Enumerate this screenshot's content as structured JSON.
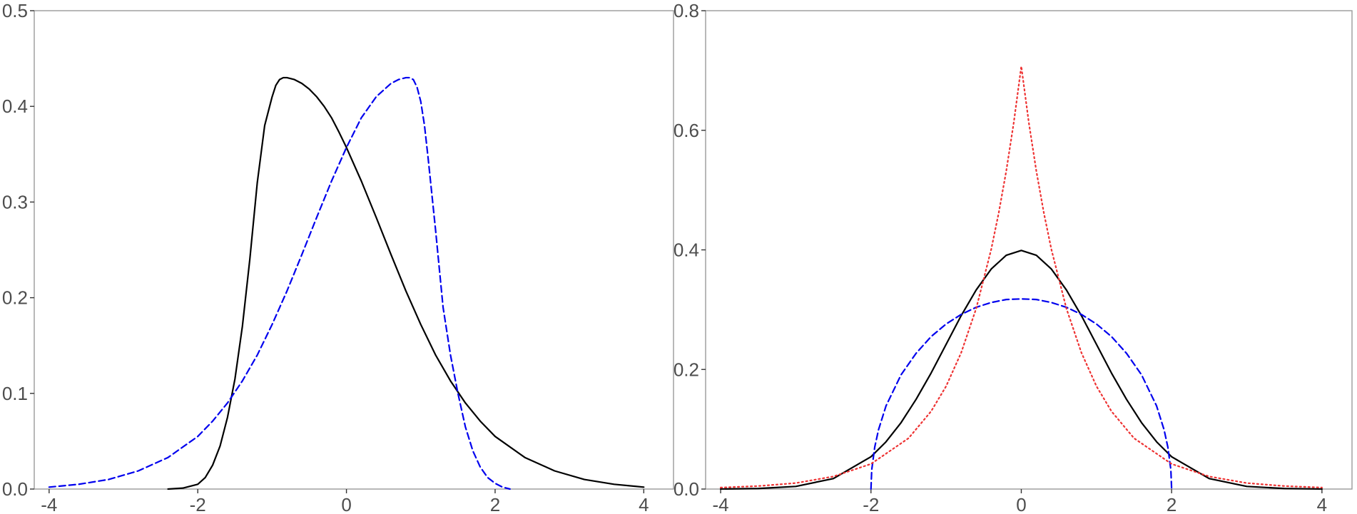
{
  "chart_data": [
    {
      "type": "line",
      "title": "",
      "xlabel": "",
      "ylabel": "",
      "xlim": [
        -4.2,
        4.4
      ],
      "ylim": [
        0,
        0.5
      ],
      "xticks": [
        -4,
        -2,
        0,
        2,
        4
      ],
      "yticks": [
        0.0,
        0.1,
        0.2,
        0.3,
        0.4,
        0.5
      ],
      "xtick_labels": [
        "-4",
        "-2",
        "0",
        "2",
        "4"
      ],
      "ytick_labels": [
        "0.0",
        "0.1",
        "0.2",
        "0.3",
        "0.4",
        "0.5"
      ],
      "grid": false,
      "series": [
        {
          "color": "#000000",
          "dash": "solid",
          "x": [
            -2.4,
            -2.2,
            -2.0,
            -1.9,
            -1.8,
            -1.7,
            -1.6,
            -1.5,
            -1.4,
            -1.3,
            -1.2,
            -1.1,
            -1.0,
            -0.95,
            -0.9,
            -0.85,
            -0.8,
            -0.7,
            -0.6,
            -0.5,
            -0.4,
            -0.3,
            -0.2,
            -0.1,
            0.0,
            0.2,
            0.4,
            0.6,
            0.8,
            1.0,
            1.2,
            1.4,
            1.6,
            1.8,
            2.0,
            2.4,
            2.8,
            3.2,
            3.6,
            4.0
          ],
          "y": [
            0.0,
            0.001,
            0.005,
            0.012,
            0.025,
            0.045,
            0.075,
            0.115,
            0.17,
            0.24,
            0.32,
            0.38,
            0.41,
            0.422,
            0.428,
            0.43,
            0.43,
            0.428,
            0.424,
            0.418,
            0.41,
            0.4,
            0.388,
            0.373,
            0.357,
            0.322,
            0.284,
            0.245,
            0.207,
            0.172,
            0.14,
            0.113,
            0.09,
            0.071,
            0.055,
            0.033,
            0.019,
            0.01,
            0.005,
            0.002
          ]
        },
        {
          "color": "#0000ee",
          "dash": "dashed",
          "x": [
            -4.0,
            -3.6,
            -3.2,
            -2.8,
            -2.4,
            -2.0,
            -1.8,
            -1.6,
            -1.4,
            -1.2,
            -1.0,
            -0.8,
            -0.6,
            -0.4,
            -0.2,
            0.0,
            0.2,
            0.4,
            0.6,
            0.7,
            0.8,
            0.85,
            0.9,
            0.95,
            1.0,
            1.05,
            1.1,
            1.2,
            1.3,
            1.4,
            1.5,
            1.6,
            1.7,
            1.8,
            1.9,
            2.0,
            2.1,
            2.2
          ],
          "y": [
            0.002,
            0.005,
            0.01,
            0.019,
            0.033,
            0.055,
            0.071,
            0.09,
            0.113,
            0.14,
            0.172,
            0.207,
            0.245,
            0.284,
            0.322,
            0.357,
            0.388,
            0.41,
            0.424,
            0.428,
            0.43,
            0.43,
            0.428,
            0.42,
            0.405,
            0.38,
            0.345,
            0.27,
            0.19,
            0.14,
            0.1,
            0.065,
            0.04,
            0.023,
            0.012,
            0.006,
            0.002,
            0.0
          ]
        }
      ]
    },
    {
      "type": "line",
      "title": "",
      "xlabel": "",
      "ylabel": "",
      "xlim": [
        -4.2,
        4.4
      ],
      "ylim": [
        0,
        0.8
      ],
      "xticks": [
        -4,
        -2,
        0,
        2,
        4
      ],
      "yticks": [
        0.0,
        0.2,
        0.4,
        0.6,
        0.8
      ],
      "xtick_labels": [
        "-4",
        "-2",
        "0",
        "2",
        "4"
      ],
      "ytick_labels": [
        "0.0",
        "0.2",
        "0.4",
        "0.6",
        "0.8"
      ],
      "grid": false,
      "series": [
        {
          "color": "#000000",
          "dash": "solid",
          "x": [
            -4.0,
            -3.5,
            -3.0,
            -2.5,
            -2.0,
            -1.8,
            -1.6,
            -1.4,
            -1.2,
            -1.0,
            -0.8,
            -0.6,
            -0.4,
            -0.2,
            0.0,
            0.2,
            0.4,
            0.6,
            0.8,
            1.0,
            1.2,
            1.4,
            1.6,
            1.8,
            2.0,
            2.5,
            3.0,
            3.5,
            4.0
          ],
          "y": [
            0.0001,
            0.0009,
            0.0044,
            0.0175,
            0.054,
            0.079,
            0.111,
            0.15,
            0.194,
            0.242,
            0.29,
            0.333,
            0.368,
            0.391,
            0.399,
            0.391,
            0.368,
            0.333,
            0.29,
            0.242,
            0.194,
            0.15,
            0.111,
            0.079,
            0.054,
            0.0175,
            0.0044,
            0.0009,
            0.0001
          ]
        },
        {
          "color": "#0000ee",
          "dash": "dashed",
          "x": [
            -2.0,
            -1.99,
            -1.95,
            -1.9,
            -1.8,
            -1.6,
            -1.4,
            -1.2,
            -1.0,
            -0.8,
            -0.6,
            -0.4,
            -0.2,
            0.0,
            0.2,
            0.4,
            0.6,
            0.8,
            1.0,
            1.2,
            1.4,
            1.6,
            1.8,
            1.9,
            1.95,
            1.99,
            2.0
          ],
          "y": [
            0.0,
            0.032,
            0.07,
            0.099,
            0.139,
            0.191,
            0.227,
            0.255,
            0.276,
            0.292,
            0.304,
            0.312,
            0.317,
            0.318,
            0.317,
            0.312,
            0.304,
            0.292,
            0.276,
            0.255,
            0.227,
            0.191,
            0.139,
            0.099,
            0.07,
            0.032,
            0.0
          ]
        },
        {
          "color": "#ee3333",
          "dash": "dotted",
          "x": [
            -4.0,
            -3.5,
            -3.0,
            -2.5,
            -2.0,
            -1.5,
            -1.2,
            -1.0,
            -0.8,
            -0.6,
            -0.4,
            -0.3,
            -0.2,
            -0.1,
            0.0,
            0.1,
            0.2,
            0.3,
            0.4,
            0.6,
            0.8,
            1.0,
            1.2,
            1.5,
            2.0,
            2.5,
            3.0,
            3.5,
            4.0
          ],
          "y": [
            0.0025,
            0.005,
            0.01,
            0.021,
            0.042,
            0.085,
            0.13,
            0.172,
            0.228,
            0.302,
            0.401,
            0.462,
            0.532,
            0.613,
            0.707,
            0.613,
            0.532,
            0.462,
            0.401,
            0.302,
            0.228,
            0.172,
            0.13,
            0.085,
            0.042,
            0.021,
            0.01,
            0.005,
            0.0025
          ]
        }
      ]
    }
  ]
}
